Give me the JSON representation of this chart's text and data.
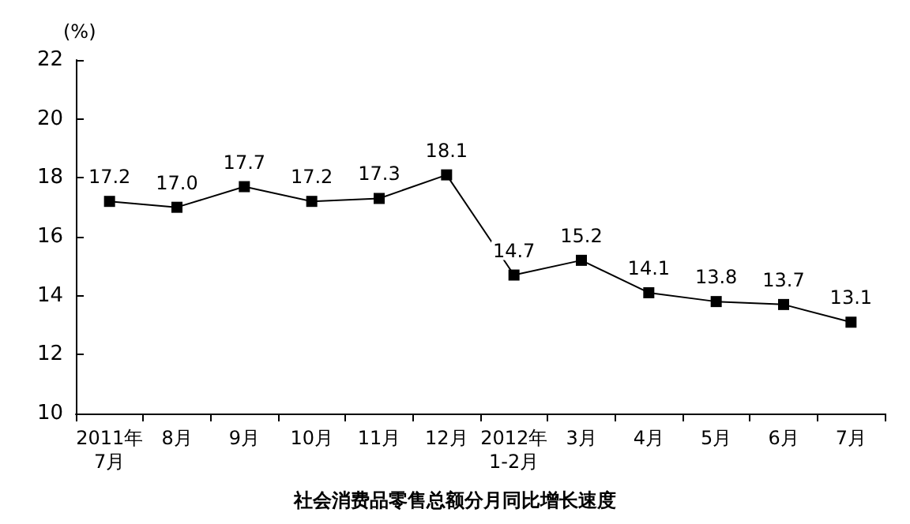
{
  "chart_data": {
    "type": "line",
    "title": "社会消费品零售总额分月同比增长速度",
    "ylabel": "(%)",
    "categories": [
      "2011年\n7月",
      "8月",
      "9月",
      "10月",
      "11月",
      "12月",
      "2012年\n1-2月",
      "3月",
      "4月",
      "5月",
      "6月",
      "7月"
    ],
    "series": [
      {
        "color": "#000000",
        "values": [
          17.2,
          17.0,
          17.7,
          17.2,
          17.3,
          18.1,
          14.7,
          15.2,
          14.1,
          13.8,
          13.7,
          13.1
        ],
        "value_labels": [
          "17.2",
          "17.0",
          "17.7",
          "17.2",
          "17.3",
          "18.1",
          "14.7",
          "15.2",
          "14.1",
          "13.8",
          "13.7",
          "13.1"
        ]
      }
    ],
    "ylim": [
      10,
      22
    ],
    "yticks": [
      10,
      12,
      14,
      16,
      18,
      20,
      22
    ],
    "grid": false,
    "marker": "square",
    "line_style": "solid"
  }
}
